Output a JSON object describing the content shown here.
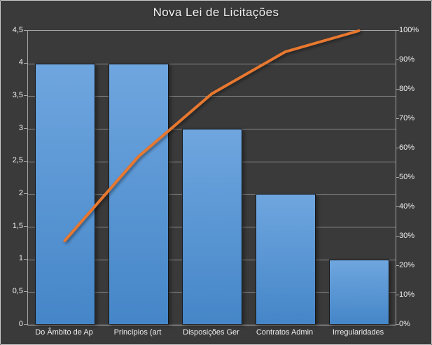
{
  "window": {
    "background": "#3A3A3A",
    "border": "#C9C9C9"
  },
  "chart_data": {
    "type": "bar",
    "subtype": "pareto",
    "title": "Nova Lei de Licitações",
    "categories": [
      "Do Âmbito de Ap",
      "Princípios (art",
      "Disposições Ger",
      "Contratos Admin",
      "Irregularidades"
    ],
    "series": [
      {
        "name": "frequency-bars",
        "type": "bar",
        "axis": "left",
        "values": [
          4,
          4,
          3,
          2,
          1
        ]
      },
      {
        "name": "cumulative-percent-line",
        "type": "line",
        "axis": "right",
        "values": [
          28.57,
          57.14,
          78.57,
          92.86,
          100
        ]
      }
    ],
    "left_axis": {
      "min": 0,
      "max": 4.5,
      "step": 0.5,
      "tick_labels": [
        "0",
        "0,5",
        "1",
        "1,5",
        "2",
        "2,5",
        "3",
        "3,5",
        "4",
        "4,5"
      ]
    },
    "right_axis": {
      "min": 0,
      "max": 100,
      "step": 10,
      "tick_labels": [
        "0%",
        "10%",
        "20%",
        "30%",
        "40%",
        "50%",
        "60%",
        "70%",
        "80%",
        "90%",
        "100%"
      ]
    },
    "grid": true,
    "legend": "none",
    "colors": {
      "background": "#3A3A3A",
      "bar_top": "#6FA6DF",
      "bar_bottom": "#4586C8",
      "bar_border": "#161616",
      "line": "#E8782F",
      "gridline": "#8C8C8C",
      "axis_line": "#A6A6A6",
      "baseline": "#D6D6D6",
      "text": "#EFEFEF"
    }
  }
}
